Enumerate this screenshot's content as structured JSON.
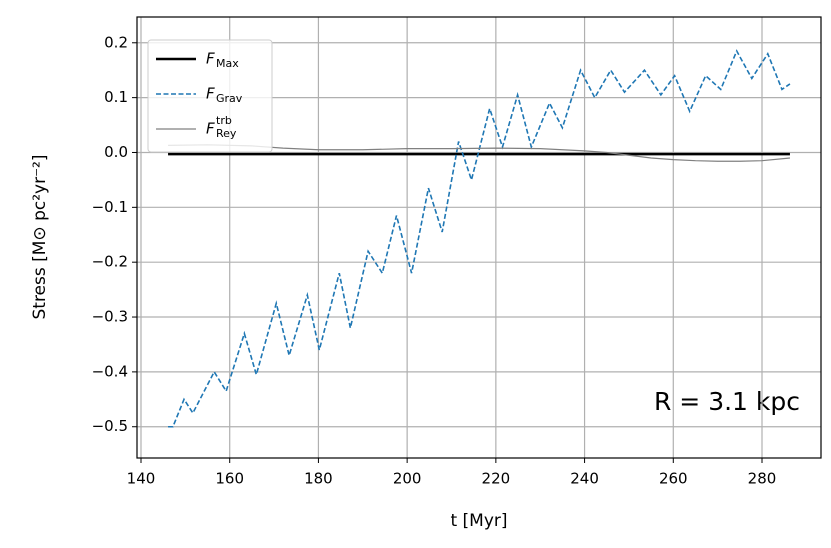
{
  "chart_data": {
    "type": "line",
    "xlabel": "t [Myr]",
    "ylabel": "Stress [M⊙ pc²yr⁻²]",
    "annotation": "R = 3.1 kpc",
    "xlim": [
      139.1,
      293.3
    ],
    "ylim": [
      -0.557,
      0.247
    ],
    "xticks": [
      140,
      160,
      180,
      200,
      220,
      240,
      260,
      280
    ],
    "yticks": [
      0.2,
      0.1,
      {
        "value": 0,
        "label": "0.0"
      },
      {
        "value": -0.1,
        "label": "−0.1"
      },
      {
        "value": -0.2,
        "label": "−0.2"
      },
      {
        "value": -0.3,
        "label": "−0.3"
      },
      {
        "value": -0.4,
        "label": "−0.4"
      },
      {
        "value": -0.5,
        "label": "−0.5"
      }
    ],
    "grid": true,
    "legend": "upper left",
    "series": [
      {
        "name": "F",
        "subscript": "Max",
        "color": "#000000",
        "width": 2.5,
        "dash": "solid",
        "x": [
          146.1,
          286.3
        ],
        "values": [
          -0.003,
          -0.003
        ]
      },
      {
        "name": "F",
        "subscript": "Grav",
        "color": "#1f77b4",
        "width": 1.6,
        "dash": "dashed",
        "x": [
          146.1,
          147.2,
          149.7,
          151.7,
          156.5,
          159.2,
          163.3,
          166,
          170.5,
          173.4,
          177.5,
          180.2,
          184.7,
          187.2,
          191.2,
          194.4,
          197.6,
          201,
          204.8,
          207.9,
          211.6,
          214.5,
          218.6,
          221.5,
          224.9,
          228,
          232.1,
          235,
          239.1,
          242.3,
          245.9,
          249,
          253.5,
          257.2,
          260.3,
          263.7,
          267.3,
          270.7,
          274.3,
          277.7,
          281.3,
          284.5,
          286.3
        ],
        "values": [
          -0.5,
          -0.5,
          -0.45,
          -0.475,
          -0.4,
          -0.435,
          -0.33,
          -0.405,
          -0.275,
          -0.37,
          -0.26,
          -0.36,
          -0.22,
          -0.32,
          -0.18,
          -0.22,
          -0.115,
          -0.22,
          -0.065,
          -0.145,
          0.02,
          -0.05,
          0.08,
          0.01,
          0.105,
          0.01,
          0.09,
          0.045,
          0.15,
          0.1,
          0.15,
          0.11,
          0.15,
          0.105,
          0.14,
          0.075,
          0.14,
          0.115,
          0.185,
          0.135,
          0.18,
          0.115,
          0.125
        ]
      },
      {
        "name": "F",
        "subscript": "Rey",
        "superscript": "trb",
        "color": "#808080",
        "width": 1.2,
        "dash": "solid",
        "x": [
          146.1,
          155,
          165,
          172,
          180,
          190,
          200,
          210,
          220,
          230,
          235,
          240,
          245,
          250,
          255,
          260,
          265,
          270,
          275,
          280,
          286.3
        ],
        "values": [
          0.013,
          0.014,
          0.012,
          0.008,
          0.005,
          0.005,
          0.007,
          0.007,
          0.008,
          0.007,
          0.005,
          0.003,
          0,
          -0.005,
          -0.01,
          -0.013,
          -0.015,
          -0.016,
          -0.016,
          -0.015,
          -0.01
        ]
      }
    ]
  }
}
